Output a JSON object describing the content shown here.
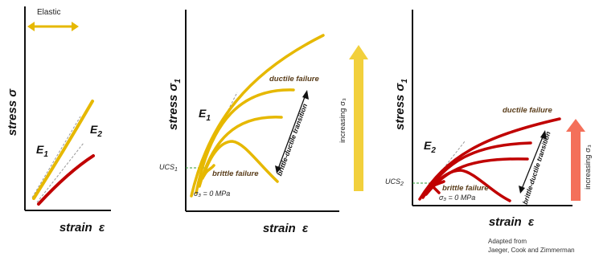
{
  "colors": {
    "gold": "#e6b800",
    "red": "#c00000",
    "arrow_gold": "#f2d03c",
    "arrow_red": "#f4705a",
    "dashed_green": "#2e9a36",
    "axis": "#111111"
  },
  "panel_left": {
    "elastic_label": "Elastic",
    "ylabel": "stress σ",
    "xlabel": "strain  ε",
    "modulus_1": "E",
    "modulus_1_sub": "1",
    "modulus_2": "E",
    "modulus_2_sub": "2"
  },
  "panel_middle": {
    "ylabel": "stress σ",
    "ylabel_sub": "1",
    "xlabel": "strain  ε",
    "modulus": "E",
    "modulus_sub": "1",
    "ucs_label": "UCS",
    "ucs_sub": "1",
    "ductile_label": "ductile failure",
    "brittle_label": "brittle failure",
    "sigma3_label": "σ₃ = 0 MPa",
    "transition_label": "brittle-ductile transition",
    "increasing_label": "increasing σ₃"
  },
  "panel_right": {
    "ylabel": "stress σ",
    "ylabel_sub": "1",
    "xlabel": "strain  ε",
    "modulus": "E",
    "modulus_sub": "2",
    "ucs_label": "UCS",
    "ucs_sub": "2",
    "ductile_label": "ductile failure",
    "brittle_label": "brittle failure",
    "sigma3_label": "σ₃ = 0 MPa",
    "transition_label": "brittle-ductile transition",
    "increasing_label": "increasing σ₃"
  },
  "credit": {
    "line1": "Adapted from",
    "line2": "Jaeger, Cook and Zimmerman"
  }
}
